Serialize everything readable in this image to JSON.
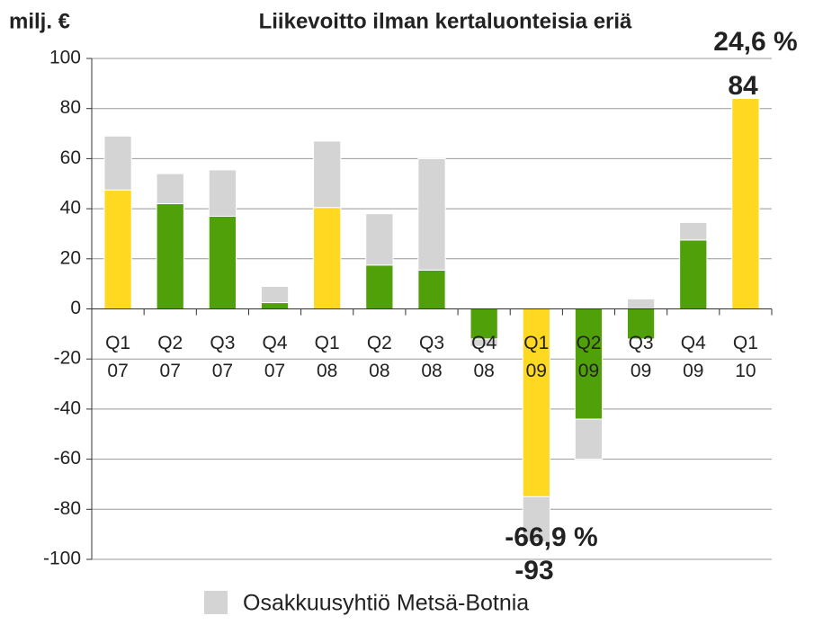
{
  "chart_data": {
    "type": "bar",
    "stacked": true,
    "title": "Liikevoitto ilman kertaluonteisia eriä",
    "y_label": "milj. €",
    "categories": [
      [
        "Q1",
        "07"
      ],
      [
        "Q2",
        "07"
      ],
      [
        "Q3",
        "07"
      ],
      [
        "Q4",
        "07"
      ],
      [
        "Q1",
        "08"
      ],
      [
        "Q2",
        "08"
      ],
      [
        "Q3",
        "08"
      ],
      [
        "Q4",
        "08"
      ],
      [
        "Q1",
        "09"
      ],
      [
        "Q2",
        "09"
      ],
      [
        "Q3",
        "09"
      ],
      [
        "Q4",
        "09"
      ],
      [
        "Q1",
        "10"
      ]
    ],
    "series": [
      {
        "colors": [
          "#ffd821",
          "#50a00a",
          "#50a00a",
          "#50a00a",
          "#ffd821",
          "#50a00a",
          "#50a00a",
          "#50a00a",
          "#ffd821",
          "#50a00a",
          "#50a00a",
          "#50a00a",
          "#ffd821"
        ],
        "values": [
          47.5,
          42,
          37,
          2.5,
          40.5,
          17.5,
          15.5,
          -12,
          -75,
          -44,
          -12,
          27.5,
          84
        ]
      },
      {
        "name": "Osakkuusyhtiö Metsä-Botnia",
        "color": "#d4d4d4",
        "values": [
          21.5,
          12,
          18.5,
          6.5,
          26.5,
          20.5,
          44.5,
          -3,
          -18,
          -16,
          4,
          7,
          0
        ]
      }
    ],
    "annotations": [
      "24,6 %",
      "84",
      "-66,9 %",
      "-93"
    ],
    "ylim": [
      -100,
      100
    ],
    "yticks": [
      -100,
      -80,
      -60,
      -40,
      -20,
      0,
      20,
      40,
      60,
      80,
      100
    ],
    "grid": true
  }
}
